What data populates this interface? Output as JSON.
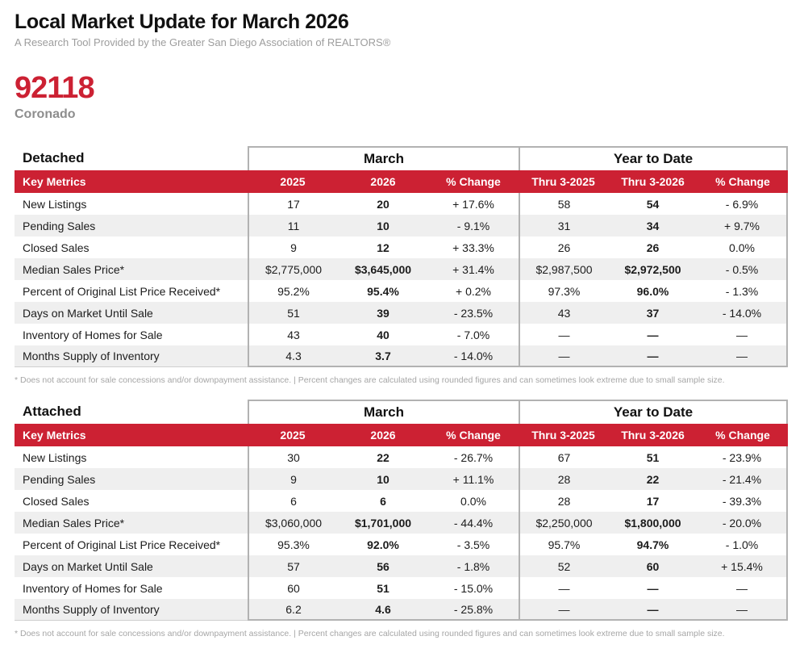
{
  "page": {
    "title": "Local Market Update for March 2026",
    "subtitle": "A Research Tool Provided by the Greater San Diego Association of REALTORS®",
    "zip": "92118",
    "community": "Coronado"
  },
  "colors": {
    "accent_red": "#cc2133",
    "border_gray": "#b2b2b2",
    "alt_row_gray": "#efefef"
  },
  "groups": {
    "march": "March",
    "ytd": "Year to Date"
  },
  "columns": {
    "key_metrics": "Key Metrics",
    "march_2025": "2025",
    "march_2026": "2026",
    "pct_change": "% Change",
    "ytd_2025": "Thru 3-2025",
    "ytd_2026": "Thru 3-2026"
  },
  "footnote": "* Does not account for sale concessions and/or downpayment assistance.  |  Percent changes are calculated using rounded figures and can sometimes look extreme due to small sample size.",
  "tables": [
    {
      "name": "Detached",
      "rows": [
        [
          "New Listings",
          "17",
          "20",
          "+ 17.6%",
          "58",
          "54",
          "- 6.9%"
        ],
        [
          "Pending Sales",
          "11",
          "10",
          "- 9.1%",
          "31",
          "34",
          "+ 9.7%"
        ],
        [
          "Closed Sales",
          "9",
          "12",
          "+ 33.3%",
          "26",
          "26",
          "0.0%"
        ],
        [
          "Median Sales Price*",
          "$2,775,000",
          "$3,645,000",
          "+ 31.4%",
          "$2,987,500",
          "$2,972,500",
          "- 0.5%"
        ],
        [
          "Percent of Original List Price Received*",
          "95.2%",
          "95.4%",
          "+ 0.2%",
          "97.3%",
          "96.0%",
          "- 1.3%"
        ],
        [
          "Days on Market Until Sale",
          "51",
          "39",
          "- 23.5%",
          "43",
          "37",
          "- 14.0%"
        ],
        [
          "Inventory of Homes for Sale",
          "43",
          "40",
          "- 7.0%",
          "—",
          "—",
          "—"
        ],
        [
          "Months Supply of Inventory",
          "4.3",
          "3.7",
          "- 14.0%",
          "—",
          "—",
          "—"
        ]
      ]
    },
    {
      "name": "Attached",
      "rows": [
        [
          "New Listings",
          "30",
          "22",
          "- 26.7%",
          "67",
          "51",
          "- 23.9%"
        ],
        [
          "Pending Sales",
          "9",
          "10",
          "+ 11.1%",
          "28",
          "22",
          "- 21.4%"
        ],
        [
          "Closed Sales",
          "6",
          "6",
          "0.0%",
          "28",
          "17",
          "- 39.3%"
        ],
        [
          "Median Sales Price*",
          "$3,060,000",
          "$1,701,000",
          "- 44.4%",
          "$2,250,000",
          "$1,800,000",
          "- 20.0%"
        ],
        [
          "Percent of Original List Price Received*",
          "95.3%",
          "92.0%",
          "- 3.5%",
          "95.7%",
          "94.7%",
          "- 1.0%"
        ],
        [
          "Days on Market Until Sale",
          "57",
          "56",
          "- 1.8%",
          "52",
          "60",
          "+ 15.4%"
        ],
        [
          "Inventory of Homes for Sale",
          "60",
          "51",
          "- 15.0%",
          "—",
          "—",
          "—"
        ],
        [
          "Months Supply of Inventory",
          "6.2",
          "4.6",
          "- 25.8%",
          "—",
          "—",
          "—"
        ]
      ]
    }
  ]
}
